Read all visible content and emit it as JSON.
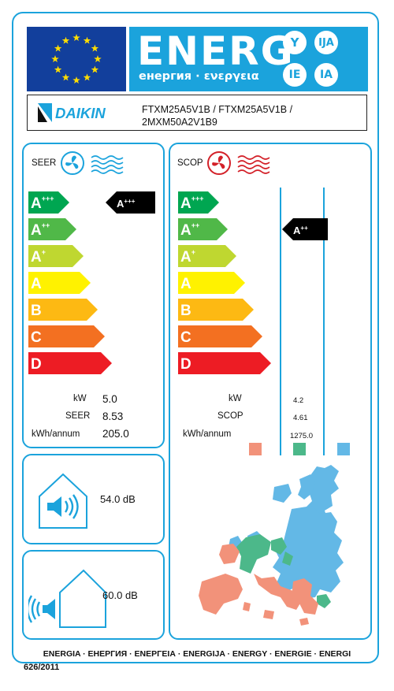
{
  "header": {
    "energ_word": "ENERG",
    "energ_sub": "енергия · ενεργεια",
    "suffixes": [
      "Y",
      "IJA",
      "IE",
      "IA"
    ]
  },
  "supplier": {
    "brand": "DAIKIN",
    "model_line1": "FTXM25A5V1B / FTXM25A5V1B /",
    "model_line2": "2MXM50A2V1B9"
  },
  "scale_classes": [
    {
      "base": "A",
      "sup": "+++",
      "color": "#00a651"
    },
    {
      "base": "A",
      "sup": "++",
      "color": "#50b848"
    },
    {
      "base": "A",
      "sup": "+",
      "color": "#bfd730"
    },
    {
      "base": "A",
      "sup": "",
      "color": "#fff200"
    },
    {
      "base": "B",
      "sup": "",
      "color": "#fdb913"
    },
    {
      "base": "C",
      "sup": "",
      "color": "#f37021"
    },
    {
      "base": "D",
      "sup": "",
      "color": "#ed1c24"
    }
  ],
  "cooling": {
    "label": "SEER",
    "rating": {
      "base": "A",
      "sup": "+++"
    },
    "kw_label": "kW",
    "kw": "5.0",
    "seer_label": "SEER",
    "seer": "8.53",
    "kwh_label": "kWh/annum",
    "kwh": "205.0"
  },
  "heating": {
    "label": "SCOP",
    "rating": {
      "base": "A",
      "sup": "++"
    },
    "kw_label": "kW",
    "kw": "4.2",
    "scop_label": "SCOP",
    "scop": "4.61",
    "kwh_label": "kWh/annum",
    "kwh": "1275.0",
    "zone_colors": [
      "#f2927a",
      "#4cb88a",
      "#63b8e6"
    ]
  },
  "noise": {
    "indoor_db": "54.0 dB",
    "outdoor_db": "60.0",
    "outdoor_unit": "dB"
  },
  "footer": {
    "languages": "ENERGIA · ЕНЕРГИЯ · ΕΝΕΡΓΕΙΑ · ENERGIJA · ENERGY · ENERGIE · ENERGI",
    "regulation": "626/2011"
  },
  "colors": {
    "frame": "#1ba3dc",
    "flag": "#123f9c",
    "stars": "#ffdd00",
    "pointer": "#000000"
  }
}
